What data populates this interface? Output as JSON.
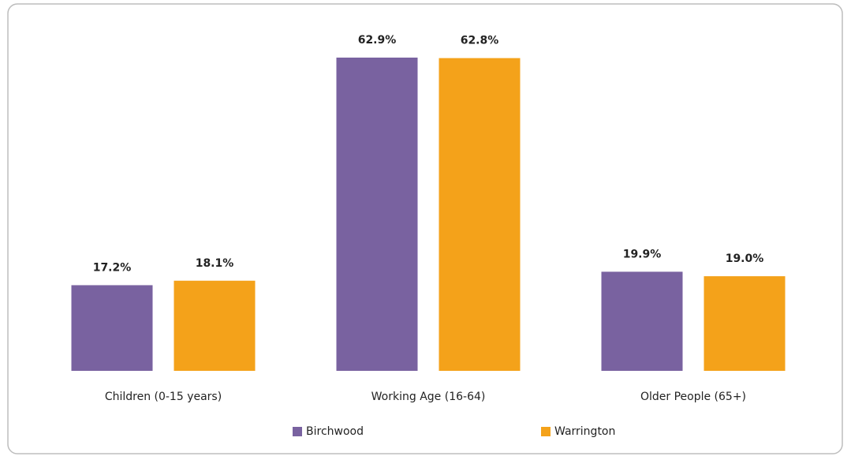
{
  "chart_data": {
    "type": "bar",
    "categories": [
      "Children (0-15 years)",
      "Working Age (16-64)",
      "Older People (65+)"
    ],
    "series": [
      {
        "name": "Birchwood",
        "color": "#7962a0",
        "values": [
          17.2,
          62.9,
          19.9
        ],
        "value_labels": [
          "17.2%",
          "62.9%",
          "19.9%"
        ]
      },
      {
        "name": "Warrington",
        "color": "#f4a21a",
        "values": [
          18.1,
          62.8,
          19.0
        ],
        "value_labels": [
          "18.1%",
          "62.8%",
          "19.0%"
        ]
      }
    ],
    "legend": "bottom"
  }
}
